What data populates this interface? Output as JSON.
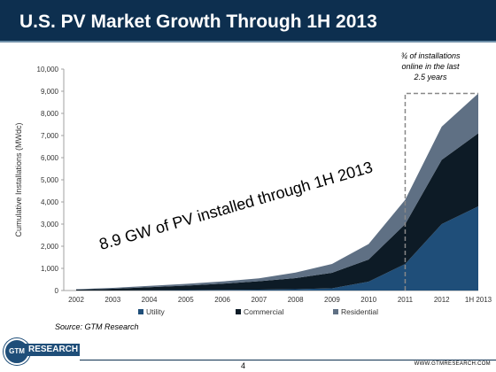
{
  "header": {
    "title": "U.S. PV Market Growth Through 1H 2013"
  },
  "footer": {
    "logo_mark": "GTM",
    "logo_text": "RESEARCH",
    "page_number": "4",
    "url": "WWW.GTMRESEARCH.COM"
  },
  "colors": {
    "title_bar": "#0d2f4f",
    "utility": "#1f4e79",
    "commercial": "#0d1b26",
    "residential": "#5f7084"
  },
  "chart_data": {
    "type": "area",
    "stacked": true,
    "title": "",
    "xlabel": "",
    "ylabel": "Cumulative Installations (MWdc)",
    "ylim": [
      0,
      10000
    ],
    "yticks": [
      0,
      1000,
      2000,
      3000,
      4000,
      5000,
      6000,
      7000,
      8000,
      9000,
      10000
    ],
    "ytick_labels": [
      "0",
      "1,000",
      "2,000",
      "3,000",
      "4,000",
      "5,000",
      "6,000",
      "7,000",
      "8,000",
      "9,000",
      "10,000"
    ],
    "categories": [
      "2002",
      "2003",
      "2004",
      "2005",
      "2006",
      "2007",
      "2008",
      "2009",
      "2010",
      "2011",
      "2012",
      "1H 2013"
    ],
    "series": [
      {
        "name": "Utility",
        "color": "#1f4e79",
        "values": [
          0,
          0,
          10,
          20,
          30,
          40,
          60,
          100,
          400,
          1200,
          3000,
          3800
        ]
      },
      {
        "name": "Commercial",
        "color": "#0d1b26",
        "values": [
          40,
          80,
          140,
          200,
          280,
          380,
          500,
          700,
          1000,
          1800,
          2900,
          3300
        ]
      },
      {
        "name": "Residential",
        "color": "#5f7084",
        "values": [
          20,
          40,
          60,
          80,
          100,
          130,
          250,
          400,
          700,
          1100,
          1500,
          1800
        ]
      }
    ],
    "legend_position": "bottom",
    "grid": false,
    "annotations": {
      "main_text": "8.9 GW  of PV installed through 1H 2013",
      "box_note": "¾ of installations online in the last 2.5 years",
      "source": "Source: GTM Research"
    },
    "highlight_range": [
      "2011",
      "1H 2013"
    ],
    "highlight_top": 8900
  }
}
